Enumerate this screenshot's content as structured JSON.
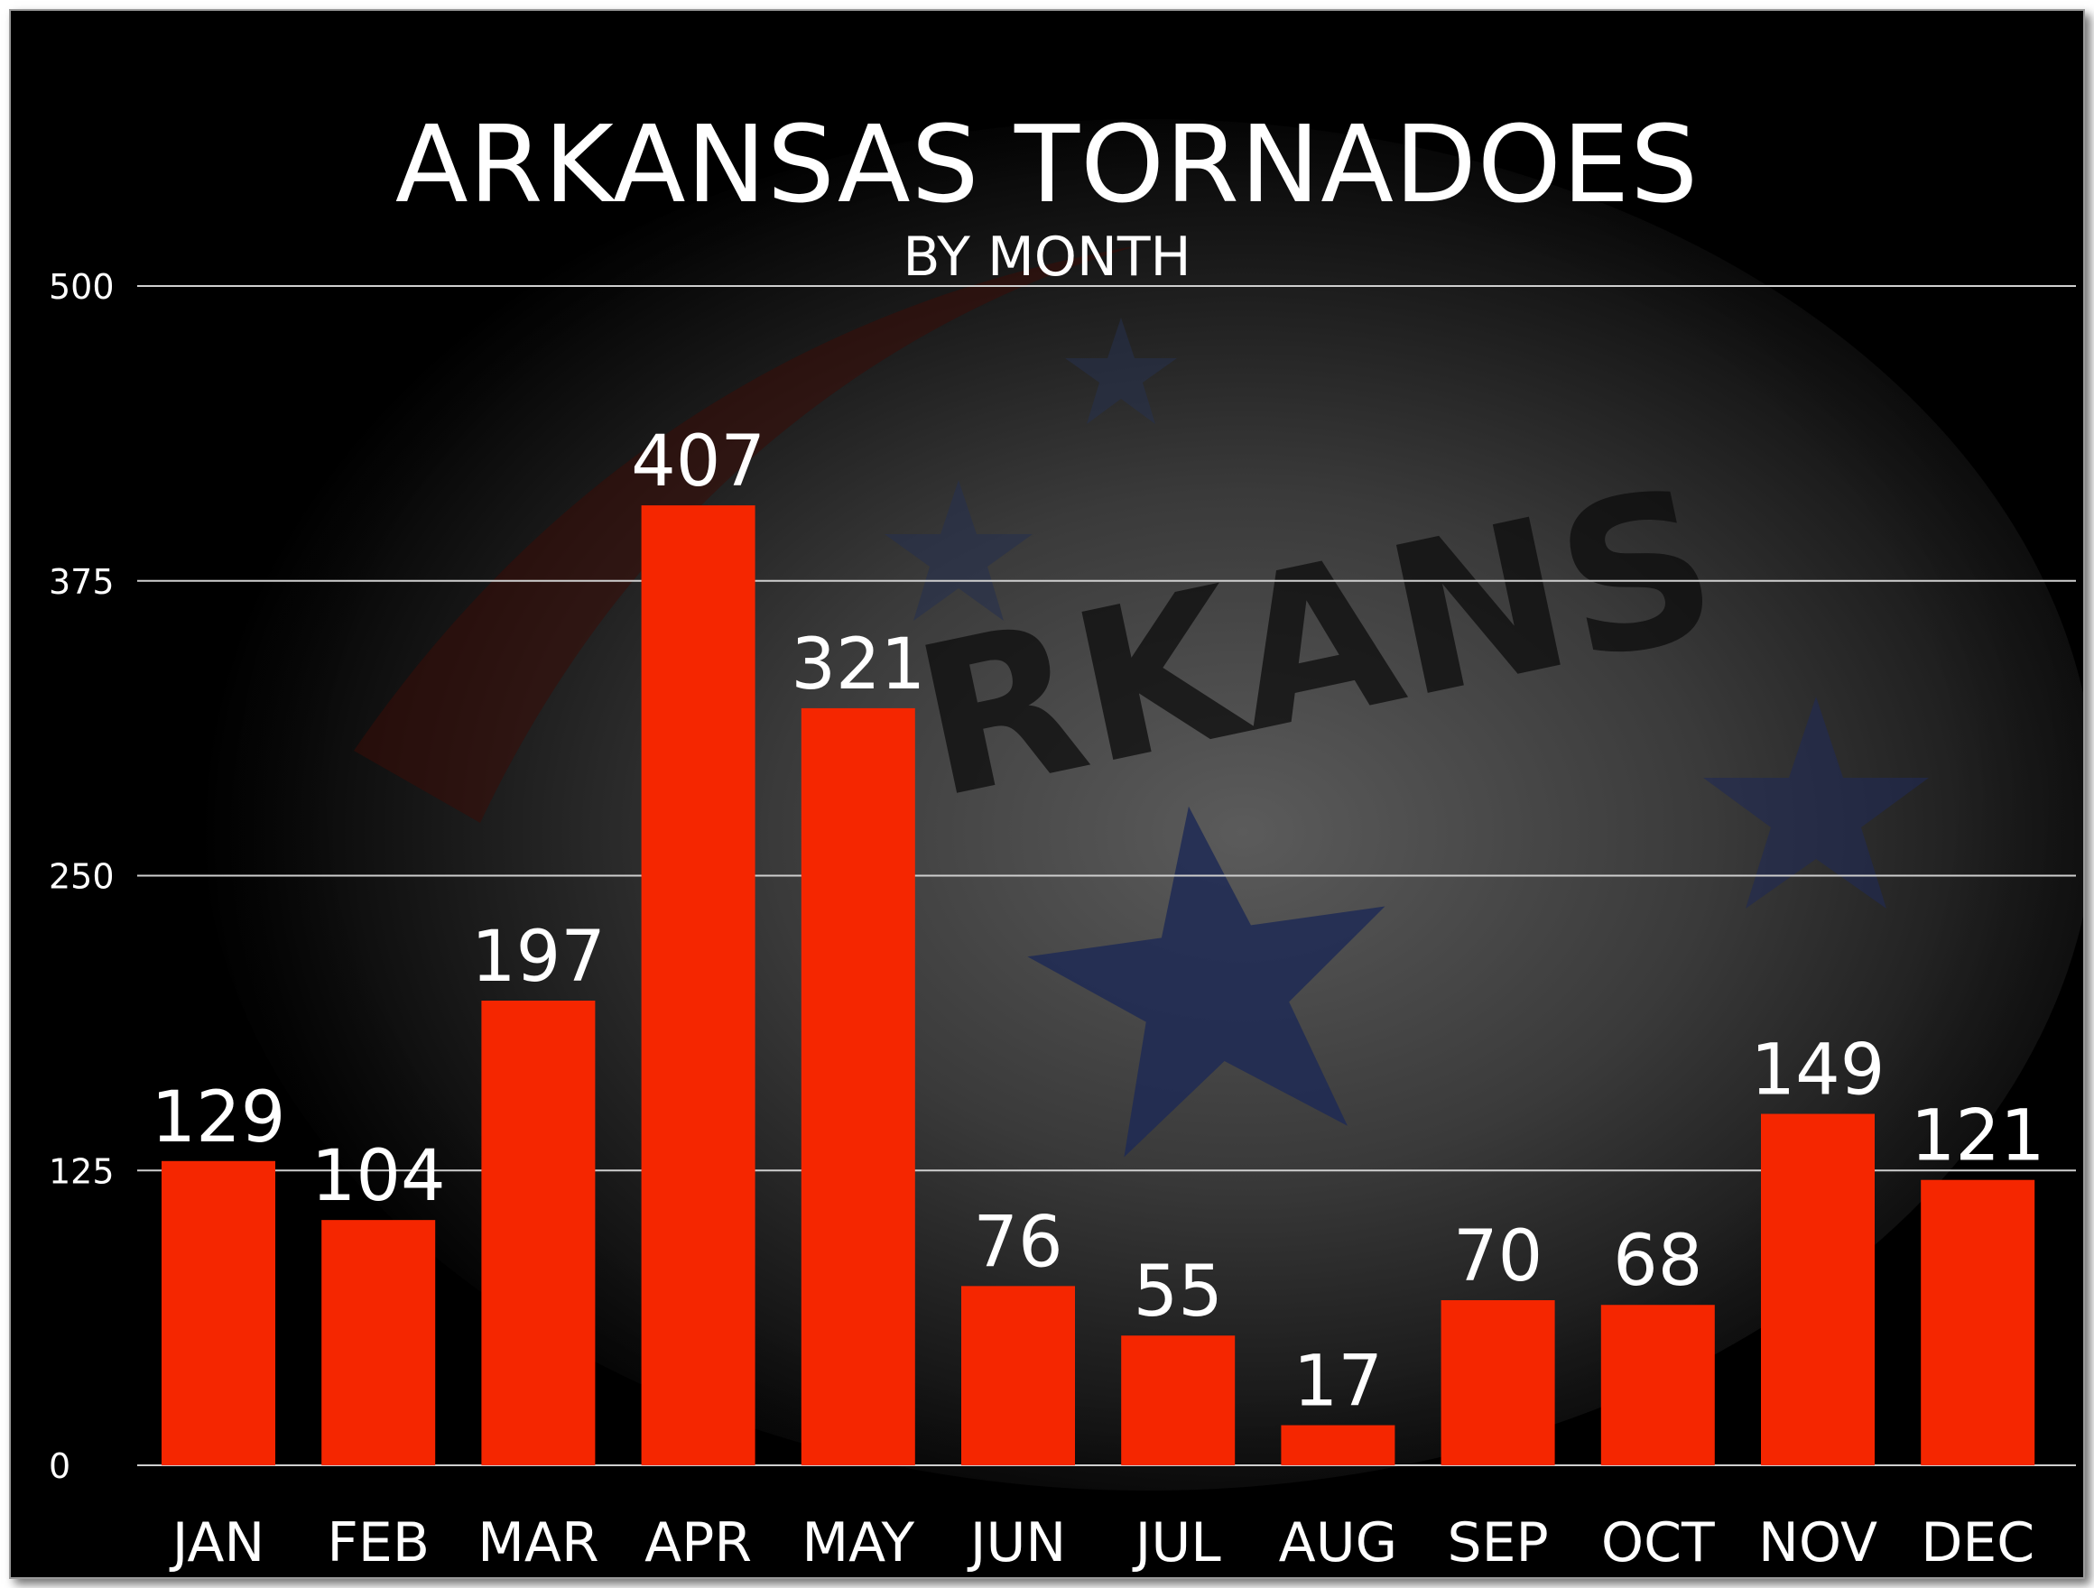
{
  "chart_data": {
    "type": "bar",
    "title": "ARKANSAS TORNADOES",
    "subtitle": "BY MONTH",
    "categories": [
      "JAN",
      "FEB",
      "MAR",
      "APR",
      "MAY",
      "JUN",
      "JUL",
      "AUG",
      "SEP",
      "OCT",
      "NOV",
      "DEC"
    ],
    "values": [
      129,
      104,
      197,
      407,
      321,
      76,
      55,
      17,
      70,
      68,
      149,
      121
    ],
    "value_labels": [
      "129",
      "104",
      "197",
      "407",
      "321",
      "76",
      "55",
      "17",
      "70",
      "68",
      "149",
      "121"
    ],
    "ylim": [
      0,
      500
    ],
    "yticks": [
      0,
      125,
      250,
      375,
      500
    ],
    "ytick_labels": [
      "0",
      "125",
      "250",
      "375",
      "500"
    ],
    "xlabel": "",
    "ylabel": "",
    "grid": true,
    "legend": "none",
    "colors": {
      "bar": "#f52600",
      "background": "#000000",
      "text": "#ffffff",
      "gridline": "#cfcfcf"
    },
    "background_image": "arkansas-flag"
  }
}
